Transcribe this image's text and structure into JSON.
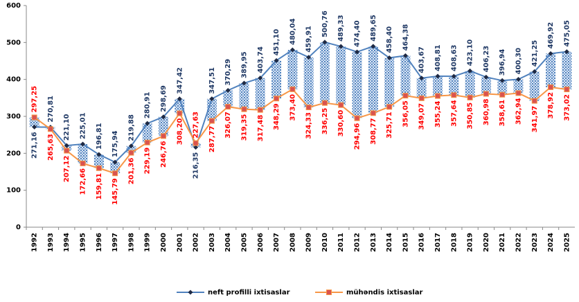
{
  "chart_data": {
    "type": "line",
    "categories": [
      "1992",
      "1993",
      "1994",
      "1995",
      "1996",
      "1997",
      "1998",
      "1999",
      "2000",
      "2001",
      "2002",
      "2003",
      "2004",
      "2005",
      "2006",
      "2007",
      "2008",
      "2009",
      "2010",
      "2011",
      "2012",
      "2013",
      "2014",
      "2015",
      "2016",
      "2017",
      "2018",
      "2019",
      "2020",
      "2021",
      "2022",
      "2023",
      "2024",
      "2025"
    ],
    "series": [
      {
        "name": "neft profilli ixtisaslar",
        "color": "#4f81bd",
        "marker_color": "#1f2a44",
        "label_color": "#1f3864",
        "values": [
          271.16,
          270.81,
          221.1,
          225.01,
          196.81,
          175.94,
          219.88,
          280.91,
          298.69,
          347.42,
          216.35,
          347.51,
          370.29,
          389.95,
          403.74,
          451.1,
          480.04,
          459.91,
          500.76,
          489.33,
          474.4,
          489.65,
          458.4,
          464.38,
          403.67,
          408.81,
          408.63,
          423.1,
          406.23,
          396.94,
          400.3,
          421.25,
          469.92,
          475.05
        ],
        "value_labels": [
          "271,16",
          "270,81",
          "221,10",
          "225,01",
          "196,81",
          "175,94",
          "219,88",
          "280,91",
          "298,69",
          "347,42",
          "216,35",
          "347,51",
          "370,29",
          "389,95",
          "403,74",
          "451,10",
          "480,04",
          "459,91",
          "500,76",
          "489,33",
          "474,40",
          "489,65",
          "458,40",
          "464,38",
          "403,67",
          "408,81",
          "408,63",
          "423,10",
          "406,23",
          "396,94",
          "400,30",
          "421,25",
          "469,92",
          "475,05"
        ]
      },
      {
        "name": "mühəndis ixtisaslar",
        "color": "#f79646",
        "marker_color": "#d9534f",
        "label_color": "#ff0000",
        "values": [
          297.25,
          265.63,
          207.12,
          172.66,
          159.81,
          145.79,
          201.36,
          229.19,
          246.76,
          308.2,
          227.63,
          287.77,
          326.07,
          319.35,
          317.48,
          348.29,
          373.4,
          324.33,
          336.25,
          330.6,
          294.96,
          308.77,
          325.71,
          356.05,
          349.07,
          355.24,
          357.64,
          350.85,
          360.98,
          358.61,
          362.94,
          341.97,
          378.92,
          373.02
        ],
        "value_labels": [
          "297,25",
          "265,63",
          "207,12",
          "172,66",
          "159,81",
          "145,79",
          "201,36",
          "229,19",
          "246,76",
          "308,20",
          "227,63",
          "287,77",
          "326,07",
          "319,35",
          "317,48",
          "348,29",
          "373,40",
          "324,33",
          "336,25",
          "330,60",
          "294,96",
          "308,77",
          "325,71",
          "356,05",
          "349,07",
          "355,24",
          "357,64",
          "350,85",
          "360,98",
          "358,61",
          "362,94",
          "341,97",
          "378,92",
          "373,02"
        ]
      }
    ],
    "ylim": [
      0,
      600
    ],
    "yticks": [
      0,
      100,
      200,
      300,
      400,
      500,
      600
    ],
    "grid": false,
    "legend": "bottom"
  }
}
